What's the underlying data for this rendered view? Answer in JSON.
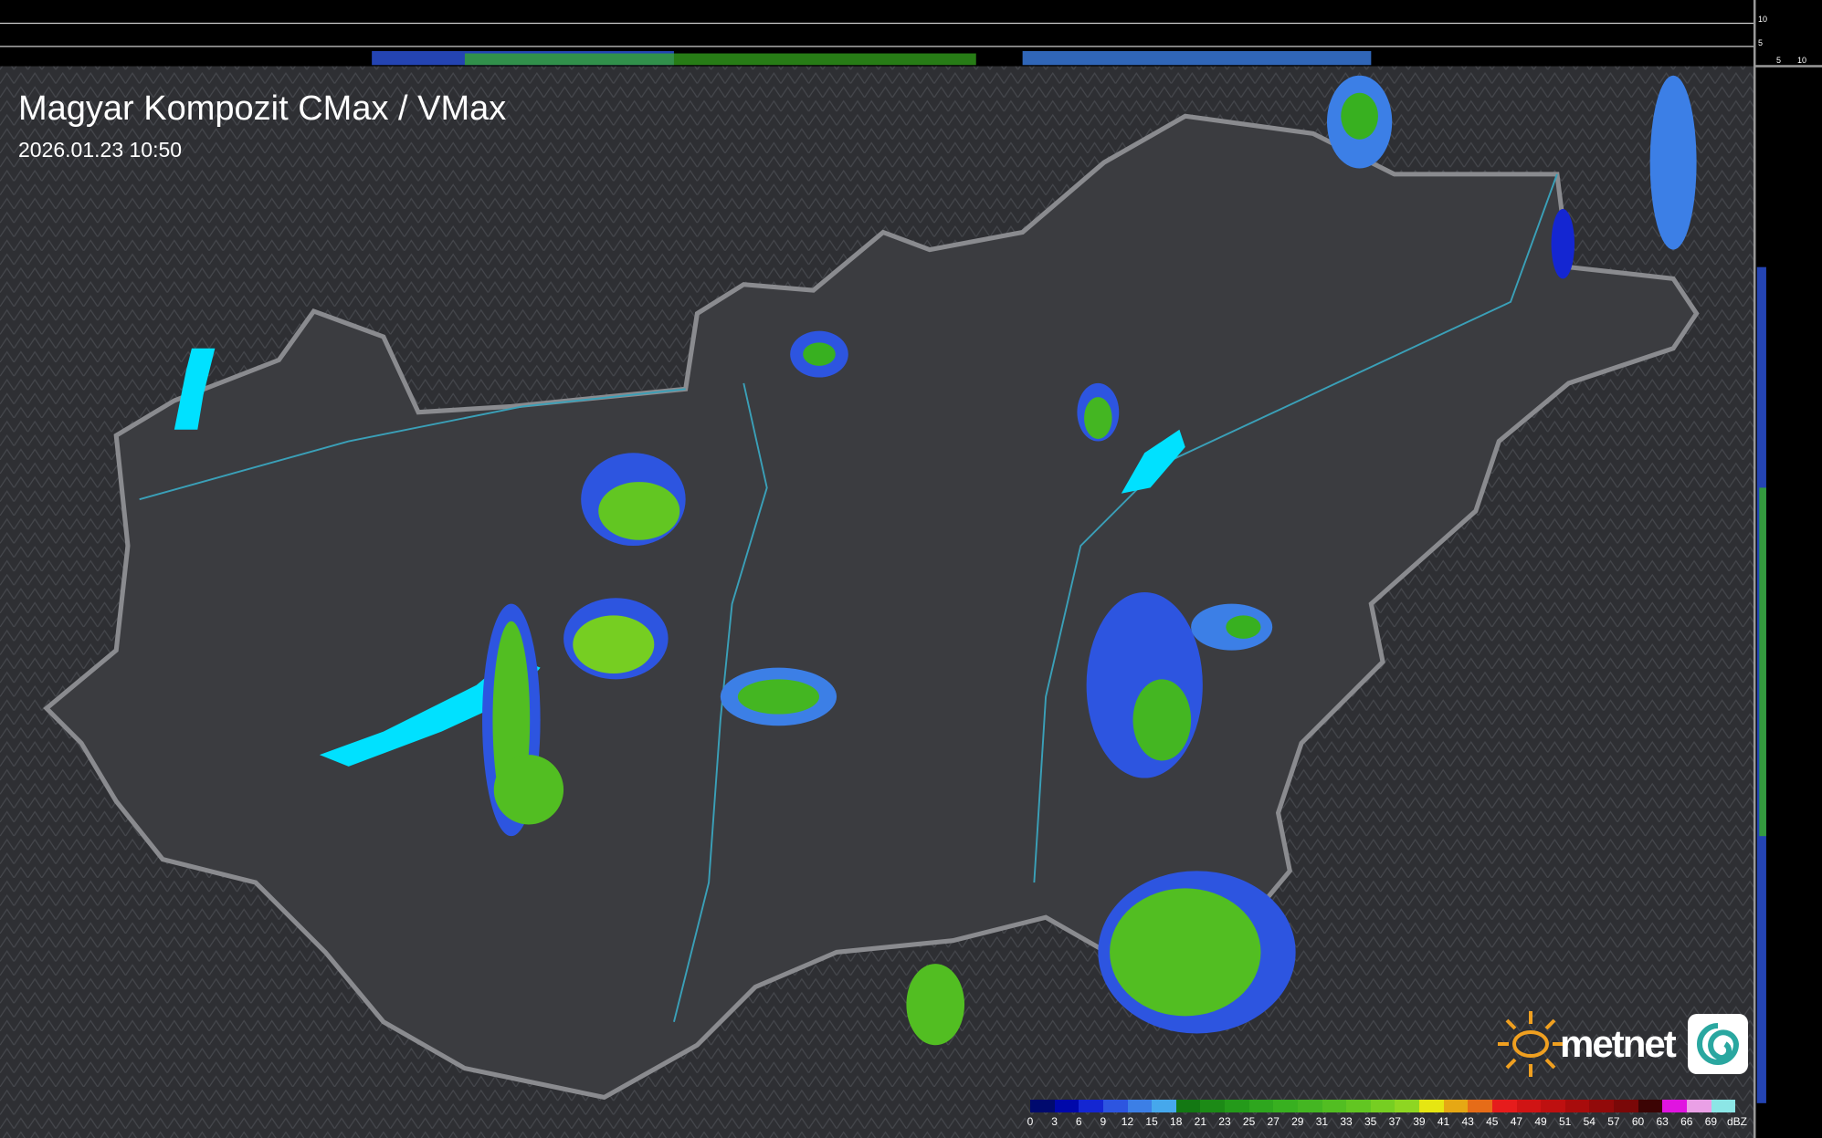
{
  "header": {
    "title": "Magyar Kompozit CMax / VMax",
    "timestamp": "2026.01.23 10:50"
  },
  "profile_axes": {
    "top_ticks": [
      "10",
      "5"
    ],
    "right_ticks": [
      "5",
      "10"
    ]
  },
  "logo": {
    "text": "metnet",
    "icon": "sun-icon"
  },
  "legend": {
    "unit": "dBZ",
    "labels": [
      "0",
      "3",
      "6",
      "9",
      "12",
      "15",
      "18",
      "21",
      "23",
      "25",
      "27",
      "29",
      "31",
      "33",
      "35",
      "37",
      "39",
      "41",
      "43",
      "45",
      "47",
      "49",
      "51",
      "54",
      "57",
      "60",
      "63",
      "66",
      "69"
    ],
    "colors": [
      "#000a6e",
      "#0008aa",
      "#1426d2",
      "#2d55e0",
      "#3c7fe6",
      "#46a8ec",
      "#137813",
      "#1c8a16",
      "#249a1a",
      "#2ea61e",
      "#38b020",
      "#44b622",
      "#52be22",
      "#62c622",
      "#76ce22",
      "#8ed622",
      "#e6e612",
      "#e6a814",
      "#e66c18",
      "#e61c1c",
      "#d01414",
      "#be1010",
      "#a80c0c",
      "#920a0a",
      "#7a0808",
      "#3c0404",
      "#e014e0",
      "#eaa0e6",
      "#8ce6e6"
    ]
  }
}
